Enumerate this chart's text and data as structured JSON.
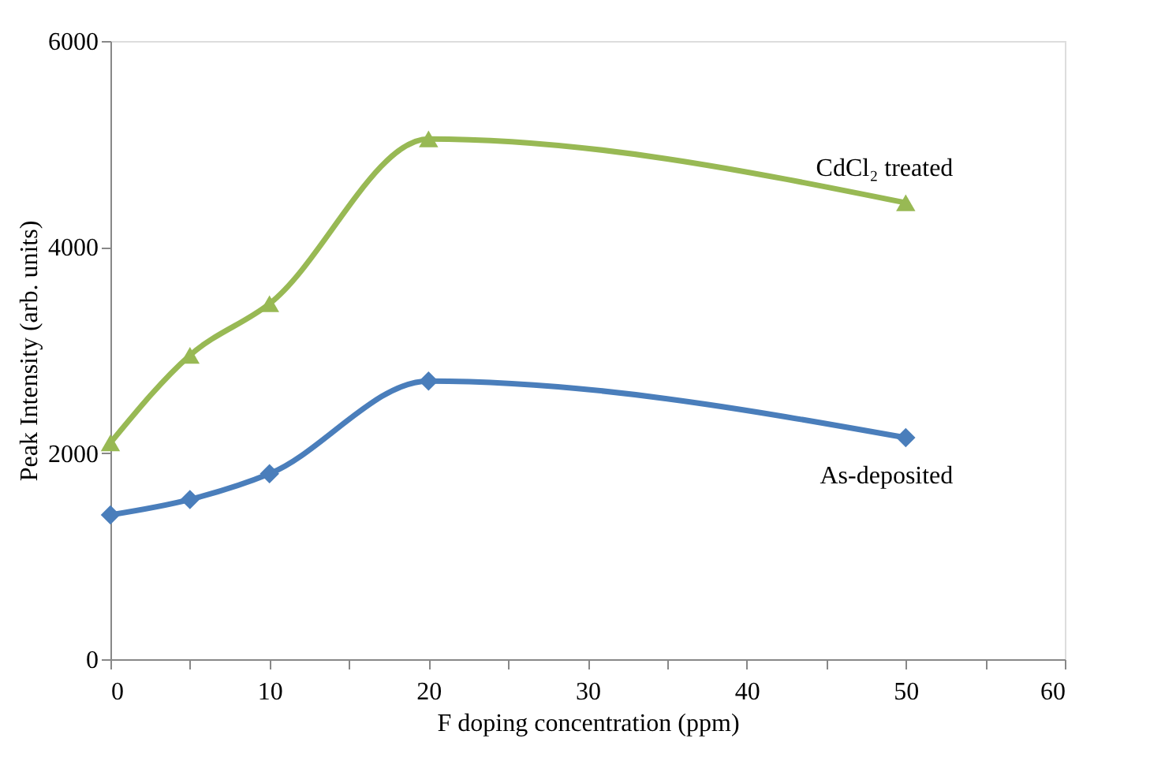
{
  "chart_data": {
    "type": "line",
    "xlabel": "F doping concentration (ppm)",
    "ylabel": "Peak Intensity (arb. units)",
    "xlim": [
      0,
      60
    ],
    "xticks": [
      0,
      {
        "value": 5,
        "label": null
      },
      10,
      {
        "value": 15,
        "label": null
      },
      20,
      {
        "value": 25,
        "label": null
      },
      30,
      {
        "value": 35,
        "label": null
      },
      40,
      {
        "value": 45,
        "label": null
      },
      50,
      {
        "value": 55,
        "label": null
      },
      60
    ],
    "ylim": [
      0,
      6000
    ],
    "yticks": [
      0,
      2000,
      4000,
      6000
    ],
    "grid": false,
    "legend": false,
    "line_style": "solid",
    "series": [
      {
        "name": "As-deposited",
        "color": "#4a7ebb",
        "marker": "diamond",
        "x": [
          0,
          5,
          10,
          20,
          50
        ],
        "values": [
          1400,
          1550,
          1800,
          2700,
          2150
        ]
      },
      {
        "name": "CdCl₂ treated",
        "color": "#98b954",
        "marker": "triangle",
        "x": [
          0,
          5,
          10,
          20,
          50
        ],
        "values": [
          2100,
          2950,
          3450,
          5050,
          4430
        ]
      }
    ]
  }
}
